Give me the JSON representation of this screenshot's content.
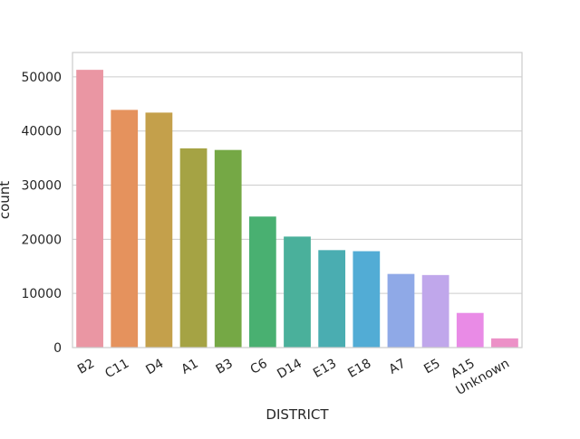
{
  "chart_data": {
    "type": "bar",
    "title": "",
    "xlabel": "DISTRICT",
    "ylabel": "count",
    "categories": [
      "B2",
      "C11",
      "D4",
      "A1",
      "B3",
      "C6",
      "D14",
      "E13",
      "E18",
      "A7",
      "E5",
      "A15",
      "Unknown"
    ],
    "values": [
      51300,
      43900,
      43400,
      36800,
      36500,
      24200,
      20500,
      18000,
      17800,
      13600,
      13400,
      6400,
      1700
    ],
    "colors": [
      "#ea96a3",
      "#e5925d",
      "#c4a04b",
      "#a5a344",
      "#75a845",
      "#49b071",
      "#4ab09b",
      "#4aadb1",
      "#52acd5",
      "#8fa9e7",
      "#c0a7eb",
      "#e98be6",
      "#ec91c7"
    ],
    "ylim": [
      0,
      54500
    ],
    "yticks": [
      0,
      10000,
      20000,
      30000,
      40000,
      50000
    ],
    "grid": true,
    "legend": "none"
  }
}
